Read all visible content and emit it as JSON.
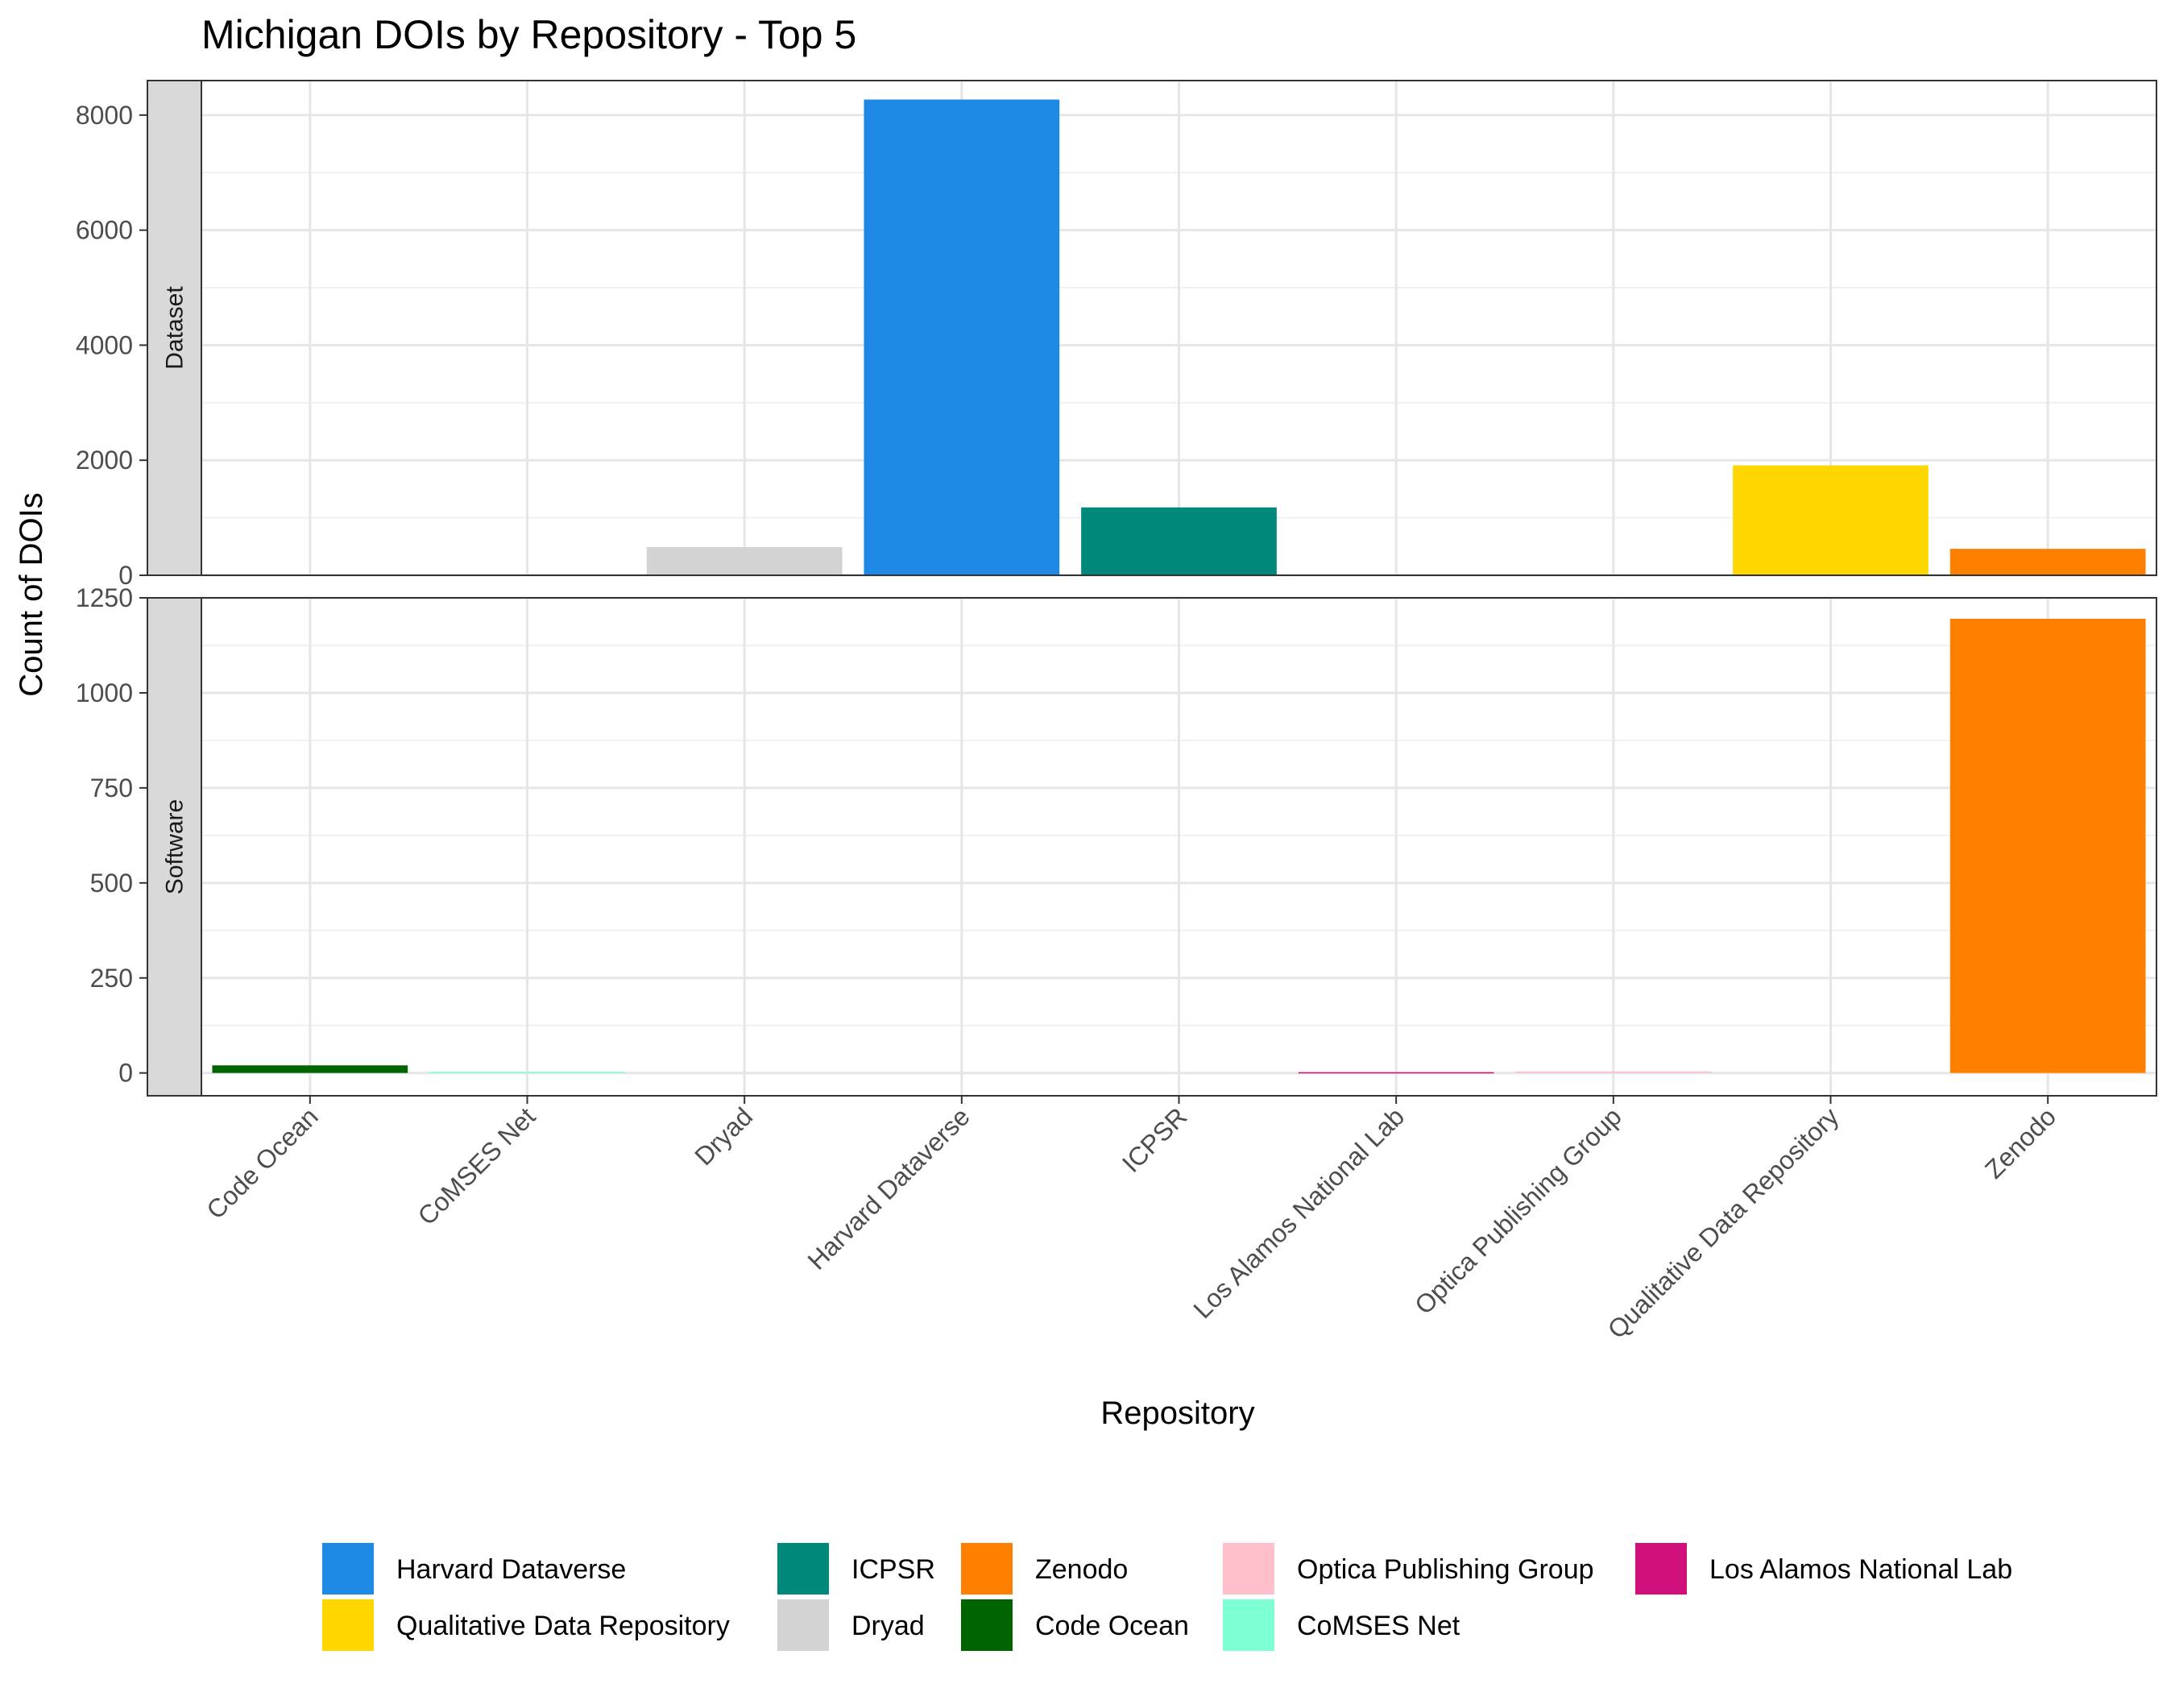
{
  "chart_data": {
    "type": "bar",
    "title": "Michigan DOIs by Repository - Top 5",
    "xlabel": "Repository",
    "ylabel": "Count of DOIs",
    "categories": [
      "Code Ocean",
      "CoMSES Net",
      "Dryad",
      "Harvard Dataverse",
      "ICPSR",
      "Los Alamos National Lab",
      "Optica Publishing Group",
      "Qualitative Data Repository",
      "Zenodo"
    ],
    "colors": {
      "Harvard Dataverse": "#1E88E5",
      "Qualitative Data Repository": "#FFD700",
      "ICPSR": "#00897B",
      "Dryad": "#D3D3D3",
      "Zenodo": "#FF7F00",
      "Code Ocean": "#006400",
      "Optica Publishing Group": "#FFC0CB",
      "CoMSES Net": "#7FFFD4",
      "Los Alamos National Lab": "#D0107A"
    },
    "facets": [
      {
        "label": "Dataset",
        "ylim": [
          0,
          8600
        ],
        "ticks": [
          0,
          2000,
          4000,
          6000,
          8000
        ],
        "tick_labels": [
          "0",
          "2000",
          "4000",
          "6000",
          "8000"
        ],
        "values": {
          "Dryad": 490,
          "Harvard Dataverse": 8270,
          "ICPSR": 1180,
          "Qualitative Data Repository": 1910,
          "Zenodo": 460
        }
      },
      {
        "label": "Software",
        "ylim": [
          -60,
          1250
        ],
        "ticks": [
          0,
          250,
          500,
          750,
          1000,
          1250
        ],
        "tick_labels": [
          "0",
          "250",
          "500",
          "750",
          "1000",
          "1250"
        ],
        "values": {
          "Code Ocean": 20,
          "CoMSES Net": 3,
          "Los Alamos National Lab": 2,
          "Optica Publishing Group": 4,
          "Zenodo": 1195
        }
      }
    ],
    "legend": {
      "position": "bottom",
      "columns": [
        [
          "Harvard Dataverse",
          "Qualitative Data Repository"
        ],
        [
          "ICPSR",
          "Dryad"
        ],
        [
          "Zenodo",
          "Code Ocean"
        ],
        [
          "Optica Publishing Group",
          "CoMSES Net"
        ],
        [
          "Los Alamos National Lab"
        ]
      ]
    },
    "grid": true
  }
}
